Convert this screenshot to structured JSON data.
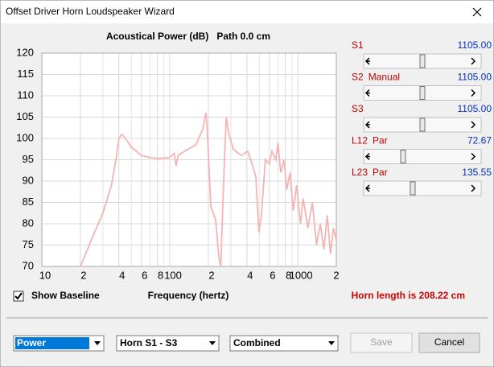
{
  "window": {
    "title": "Offset Driver Horn Loudspeaker Wizard"
  },
  "chart_data": {
    "type": "line",
    "title": "Acoustical Power (dB)   Path 0.0 cm",
    "x_label": "Frequency (hertz)",
    "xscale": "log",
    "xlim": [
      10,
      2000
    ],
    "ylim": [
      70,
      120
    ],
    "grid": true,
    "xticks": [
      10,
      {
        "value": 20,
        "label": "2"
      },
      {
        "value": 40,
        "label": "4"
      },
      {
        "value": 60,
        "label": "6"
      },
      {
        "value": 80,
        "label": "8"
      },
      100,
      {
        "value": 200,
        "label": "2"
      },
      {
        "value": 400,
        "label": "4"
      },
      {
        "value": 600,
        "label": "6"
      },
      {
        "value": 800,
        "label": "8"
      },
      1000,
      {
        "value": 2000,
        "label": "2"
      }
    ],
    "xminor_ticks": [
      30,
      50,
      70,
      90,
      300,
      500,
      700,
      900
    ],
    "yticks": [
      70,
      75,
      80,
      85,
      90,
      95,
      100,
      105,
      110,
      115,
      120
    ],
    "series": [
      {
        "name": "Power",
        "color": "#f4b4b4",
        "x": [
          20,
          25,
          30,
          35,
          38,
          40,
          42,
          45,
          50,
          60,
          70,
          80,
          100,
          108,
          112,
          116,
          130,
          160,
          180,
          192,
          198,
          209,
          228,
          242,
          250,
          262,
          276,
          290,
          313,
          362,
          407,
          440,
          470,
          497,
          520,
          558,
          600,
          628,
          674,
          700,
          735,
          780,
          820,
          870,
          920,
          980,
          1050,
          1100,
          1200,
          1300,
          1400,
          1500,
          1600,
          1700,
          1800,
          1900,
          2000
        ],
        "values": [
          70,
          77,
          82.5,
          89,
          95,
          100,
          101,
          100,
          98,
          96,
          95.5,
          95.3,
          95.5,
          96.5,
          93.5,
          96,
          97,
          98.5,
          102,
          106,
          100,
          84,
          81,
          72,
          70,
          88,
          105,
          101,
          97.5,
          96,
          97,
          94,
          91,
          78,
          82,
          95,
          94,
          97,
          95,
          99,
          92,
          95,
          88,
          92,
          83,
          89,
          80,
          86,
          79,
          85,
          75,
          80,
          74,
          82,
          73,
          79,
          76
        ]
      }
    ]
  },
  "checkbox": {
    "label": "Show Baseline",
    "checked": true
  },
  "sliders": [
    {
      "label": "S1",
      "value_label": "1105.00"
    },
    {
      "label": "S2",
      "note": "Manual",
      "value_label": "1105.00"
    },
    {
      "label": "S3",
      "value_label": "1105.00"
    },
    {
      "label": "L12",
      "note": "Par",
      "value_label": "72.67"
    },
    {
      "label": "L23",
      "note": "Par",
      "value_label": "135.55"
    }
  ],
  "horn_length": "Horn length is 208.22 cm",
  "dropdowns": [
    "Power",
    "Horn S1 - S3",
    "Combined"
  ],
  "buttons": [
    "Save",
    "Cancel"
  ]
}
